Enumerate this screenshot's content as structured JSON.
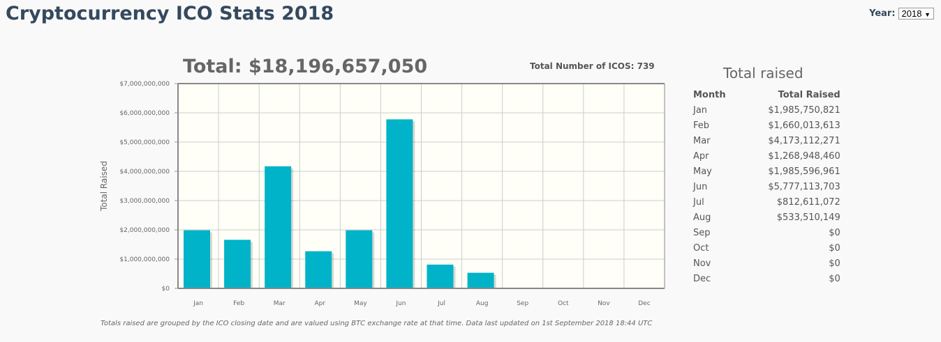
{
  "title": "Cryptocurrency ICO Stats 2018",
  "year_selector": {
    "label": "Year:",
    "selected": "2018"
  },
  "total_label": "Total: $18,196,657,050",
  "icos_count_label": "Total Number of ICOS: 739",
  "footnote": "Totals raised are grouped by the ICO closing date and are valued using BTC exchange rate at that time. Data last updated on 1st September 2018 18:44 UTC",
  "table": {
    "title": "Total raised",
    "headers": [
      "Month",
      "Total Raised"
    ],
    "rows": [
      [
        "Jan",
        "$1,985,750,821"
      ],
      [
        "Feb",
        "$1,660,013,613"
      ],
      [
        "Mar",
        "$4,173,112,271"
      ],
      [
        "Apr",
        "$1,268,948,460"
      ],
      [
        "May",
        "$1,985,596,961"
      ],
      [
        "Jun",
        "$5,777,113,703"
      ],
      [
        "Jul",
        "$812,611,072"
      ],
      [
        "Aug",
        "$533,510,149"
      ],
      [
        "Sep",
        "$0"
      ],
      [
        "Oct",
        "$0"
      ],
      [
        "Nov",
        "$0"
      ],
      [
        "Dec",
        "$0"
      ]
    ]
  },
  "chart_data": {
    "type": "bar",
    "categories": [
      "Jan",
      "Feb",
      "Mar",
      "Apr",
      "May",
      "Jun",
      "Jul",
      "Aug",
      "Sep",
      "Oct",
      "Nov",
      "Dec"
    ],
    "values": [
      1985750821,
      1660013613,
      4173112271,
      1268948460,
      1985596961,
      5777113703,
      812611072,
      533510149,
      0,
      0,
      0,
      0
    ],
    "ylabel": "Total Raised",
    "ylim": [
      0,
      7000000000
    ],
    "yticks": [
      "$0",
      "$1,000,000,000",
      "$2,000,000,000",
      "$3,000,000,000",
      "$4,000,000,000",
      "$5,000,000,000",
      "$6,000,000,000",
      "$7,000,000,000"
    ],
    "grid": true,
    "bar_color": "#00b3c8",
    "plot_bg": "#fffff8"
  }
}
